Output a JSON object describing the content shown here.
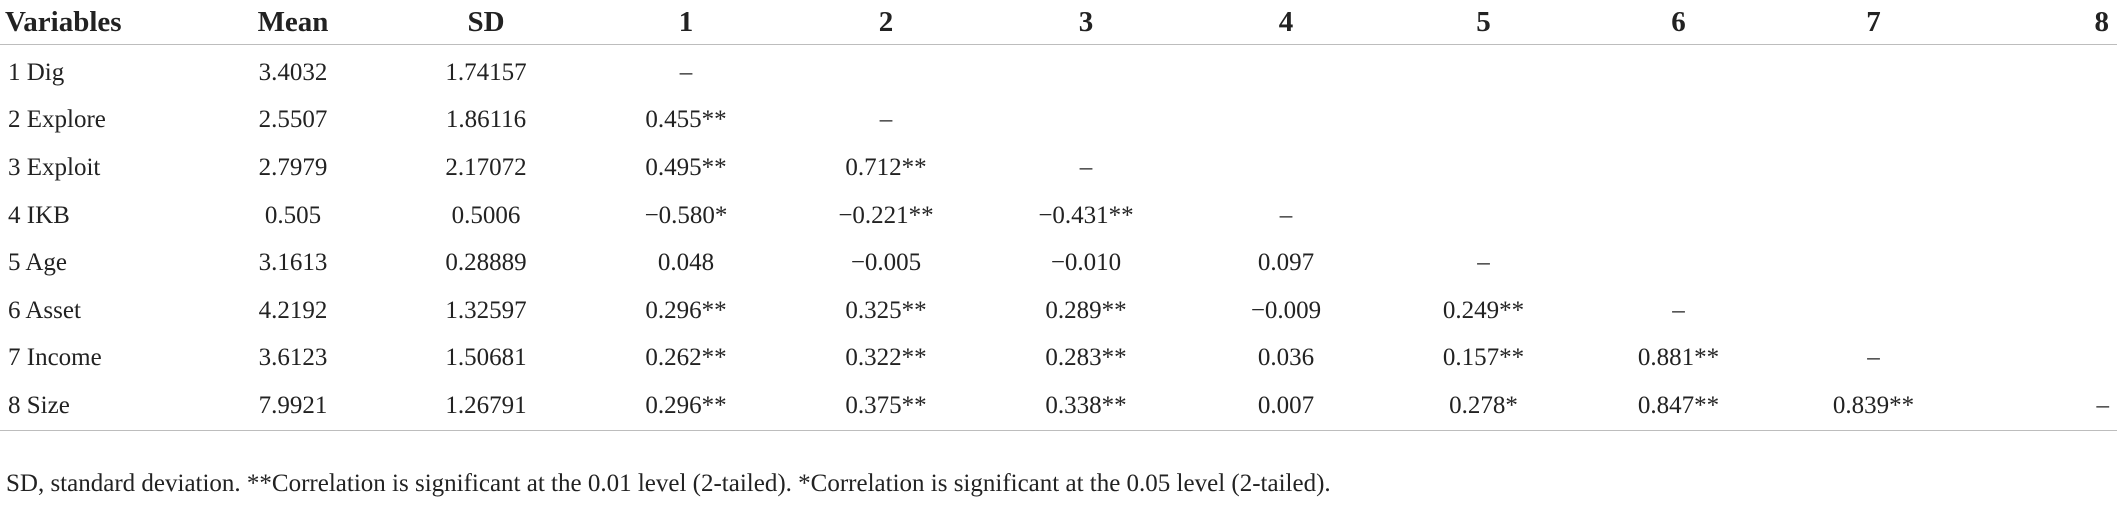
{
  "table": {
    "headers": [
      "Variables",
      "Mean",
      "SD",
      "1",
      "2",
      "3",
      "4",
      "5",
      "6",
      "7",
      "8"
    ],
    "rows": [
      [
        "1 Dig",
        "3.4032",
        "1.74157",
        "–",
        "",
        "",
        "",
        "",
        "",
        "",
        ""
      ],
      [
        "2 Explore",
        "2.5507",
        "1.86116",
        "0.455**",
        "–",
        "",
        "",
        "",
        "",
        "",
        ""
      ],
      [
        "3 Exploit",
        "2.7979",
        "2.17072",
        "0.495**",
        "0.712**",
        "–",
        "",
        "",
        "",
        "",
        ""
      ],
      [
        "4 IKB",
        "0.505",
        "0.5006",
        "−0.580*",
        "−0.221**",
        "−0.431**",
        "–",
        "",
        "",
        "",
        ""
      ],
      [
        "5 Age",
        "3.1613",
        "0.28889",
        "0.048",
        "−0.005",
        "−0.010",
        "0.097",
        "–",
        "",
        "",
        ""
      ],
      [
        "6 Asset",
        "4.2192",
        "1.32597",
        "0.296**",
        "0.325**",
        "0.289**",
        "−0.009",
        "0.249**",
        "–",
        "",
        ""
      ],
      [
        "7 Income",
        "3.6123",
        "1.50681",
        "0.262**",
        "0.322**",
        "0.283**",
        "0.036",
        "0.157**",
        "0.881**",
        "–",
        ""
      ],
      [
        "8 Size",
        "7.9921",
        "1.26791",
        "0.296**",
        "0.375**",
        "0.338**",
        "0.007",
        "0.278*",
        "0.847**",
        "0.839**",
        "–"
      ]
    ]
  },
  "footnote": "SD, standard deviation. **Correlation is significant at the 0.01 level (2-tailed). *Correlation is significant at the 0.05 level (2-tailed)."
}
